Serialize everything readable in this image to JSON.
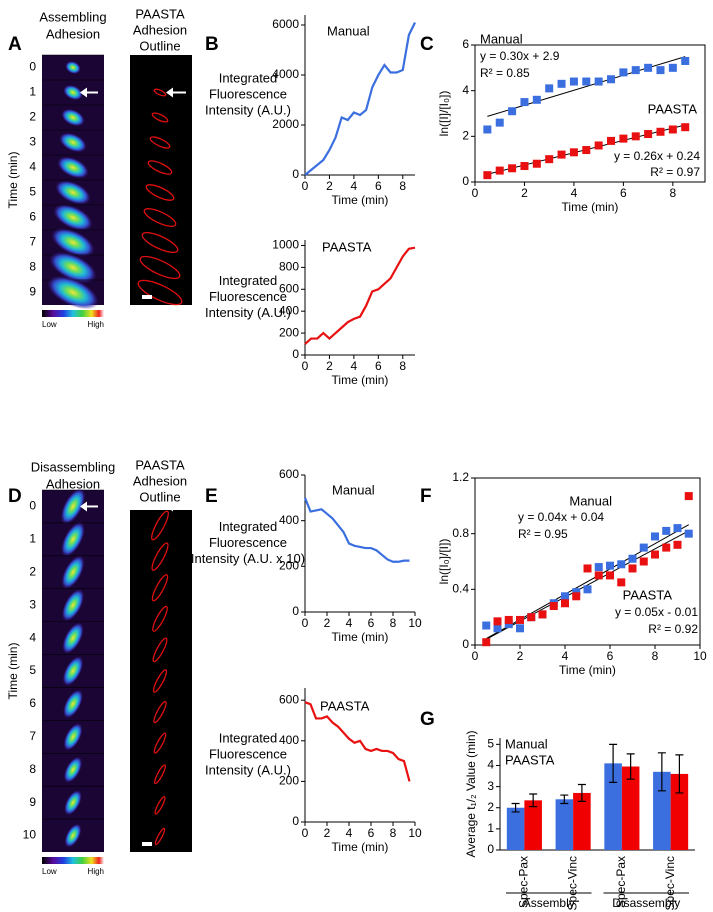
{
  "panel_letters": [
    "A",
    "B",
    "C",
    "D",
    "E",
    "F",
    "G"
  ],
  "panels": {
    "A": {
      "title": [
        "Assembling",
        "Adhesion"
      ],
      "outline_title": [
        "PAASTA",
        "Adhesion",
        "Outline"
      ],
      "ylabel": "Time (min)",
      "time_labels": [
        "0",
        "1",
        "2",
        "3",
        "4",
        "5",
        "6",
        "7",
        "8",
        "9"
      ],
      "colorbar": [
        "Low",
        "High"
      ]
    },
    "D": {
      "title": [
        "Disassembling",
        "Adhesion"
      ],
      "outline_title": [
        "PAASTA",
        "Adhesion",
        "Outline"
      ],
      "ylabel": "Time (min)",
      "time_labels": [
        "0",
        "1",
        "2",
        "3",
        "4",
        "5",
        "6",
        "7",
        "8",
        "9",
        "10"
      ],
      "colorbar": [
        "Low",
        "High"
      ]
    }
  },
  "chart_data": [
    {
      "type": "line",
      "ylabel": [
        "Integrated",
        "Fluorescence",
        "Intensity (A.U.)"
      ],
      "xlabel": "Time (min)",
      "x": [
        0,
        0.5,
        1,
        1.5,
        2,
        2.5,
        3,
        3.5,
        4,
        4.5,
        5,
        5.5,
        6,
        6.5,
        7,
        7.5,
        8,
        8.5,
        9
      ],
      "series": [
        {
          "name": "Manual",
          "color": "#3b6fe0",
          "values": [
            0,
            200,
            400,
            600,
            1000,
            1500,
            2300,
            2200,
            2500,
            2400,
            2600,
            3500,
            4000,
            4400,
            4100,
            4100,
            4200,
            5600,
            6100
          ]
        }
      ],
      "xlim": [
        0,
        9
      ],
      "xticks": [
        0,
        2,
        4,
        6,
        8
      ],
      "ylim": [
        0,
        6400
      ],
      "yticks": [
        0,
        2000,
        4000,
        6000
      ]
    },
    {
      "type": "line",
      "ylabel": [
        "Integrated",
        "Fluorescence",
        "Intensity (A.U.)"
      ],
      "xlabel": "Time (min)",
      "x": [
        0,
        0.5,
        1,
        1.5,
        2,
        2.5,
        3,
        3.5,
        4,
        4.5,
        5,
        5.5,
        6,
        6.5,
        7,
        7.5,
        8,
        8.5,
        9
      ],
      "series": [
        {
          "name": "PAASTA",
          "color": "#e81010",
          "values": [
            100,
            150,
            150,
            200,
            150,
            200,
            250,
            300,
            330,
            350,
            450,
            580,
            600,
            650,
            700,
            800,
            900,
            970,
            980
          ]
        }
      ],
      "xlim": [
        0,
        9
      ],
      "xticks": [
        0,
        2,
        4,
        6,
        8
      ],
      "ylim": [
        0,
        1050
      ],
      "yticks": [
        0,
        200,
        400,
        600,
        800,
        1000
      ]
    },
    {
      "type": "scatter",
      "ylabel": "ln([I]/[I₀])",
      "xlabel": "Time (min)",
      "x": [
        0.5,
        1,
        1.5,
        2,
        2.5,
        3,
        3.5,
        4,
        4.5,
        5,
        5.5,
        6,
        6.5,
        7,
        7.5,
        8,
        8.5
      ],
      "series": [
        {
          "name": "Manual",
          "color": "#3b6fe0",
          "fit_labels": [
            "y = 0.30x + 2.9",
            "R² = 0.85"
          ],
          "values": [
            2.3,
            2.6,
            3.1,
            3.5,
            3.6,
            4.1,
            4.3,
            4.4,
            4.4,
            4.4,
            4.5,
            4.8,
            4.9,
            5.0,
            4.9,
            5.0,
            5.3
          ]
        },
        {
          "name": "PAASTA",
          "color": "#e81010",
          "fit_labels": [
            "y = 0.26x + 0.24",
            "R² = 0.97"
          ],
          "values": [
            0.3,
            0.5,
            0.6,
            0.7,
            0.8,
            1.0,
            1.2,
            1.3,
            1.4,
            1.6,
            1.8,
            1.9,
            2.0,
            2.1,
            2.2,
            2.3,
            2.4
          ]
        }
      ],
      "xlim": [
        0,
        9.3
      ],
      "xticks": [
        0,
        2,
        4,
        6,
        8
      ],
      "ylim": [
        0,
        6
      ],
      "yticks": [
        0,
        2,
        4,
        6
      ]
    },
    {
      "type": "line",
      "ylabel": [
        "Integrated",
        "Fluorescence",
        "Intensity (A.U. x 10)"
      ],
      "xlabel": "Time (min)",
      "x": [
        0,
        0.5,
        1,
        1.5,
        2,
        2.5,
        3,
        3.5,
        4,
        4.5,
        5,
        5.5,
        6,
        6.5,
        7,
        7.5,
        8,
        8.5,
        9,
        9.5
      ],
      "series": [
        {
          "name": "Manual",
          "color": "#3b6fe0",
          "values": [
            500,
            440,
            445,
            450,
            430,
            410,
            380,
            350,
            300,
            290,
            285,
            280,
            280,
            270,
            250,
            230,
            220,
            220,
            225,
            225
          ]
        }
      ],
      "xlim": [
        0,
        10
      ],
      "xticks": [
        0,
        2,
        4,
        6,
        8,
        10
      ],
      "ylim": [
        0,
        600
      ],
      "yticks": [
        0,
        200,
        400,
        600
      ]
    },
    {
      "type": "line",
      "ylabel": [
        "Integrated",
        "Fluorescence",
        "Intensity (A.U.)"
      ],
      "xlabel": "Time (min)",
      "x": [
        0,
        0.5,
        1,
        1.5,
        2,
        2.5,
        3,
        3.5,
        4,
        4.5,
        5,
        5.5,
        6,
        6.5,
        7,
        7.5,
        8,
        8.5,
        9,
        9.5
      ],
      "series": [
        {
          "name": "PAASTA",
          "color": "#e81010",
          "values": [
            590,
            580,
            510,
            510,
            520,
            490,
            470,
            440,
            410,
            390,
            400,
            360,
            350,
            360,
            350,
            350,
            340,
            310,
            300,
            200
          ]
        }
      ],
      "xlim": [
        0,
        10
      ],
      "xticks": [
        0,
        2,
        4,
        6,
        8,
        10
      ],
      "ylim": [
        0,
        660
      ],
      "yticks": [
        0,
        200,
        400,
        600
      ]
    },
    {
      "type": "scatter",
      "ylabel": "ln([I₀]/[I])",
      "xlabel": "Time (min)",
      "x": [
        0.5,
        1,
        1.5,
        2,
        2.5,
        3,
        3.5,
        4,
        4.5,
        5,
        5.5,
        6,
        6.5,
        7,
        7.5,
        8,
        8.5,
        9,
        9.5
      ],
      "series": [
        {
          "name": "Manual",
          "color": "#3b6fe0",
          "fit_labels": [
            "y = 0.04x + 0.04",
            "R² = 0.95"
          ],
          "values": [
            0.14,
            0.12,
            0.15,
            0.12,
            0.2,
            0.22,
            0.3,
            0.35,
            0.38,
            0.4,
            0.56,
            0.57,
            0.58,
            0.62,
            0.7,
            0.78,
            0.82,
            0.84,
            0.8
          ]
        },
        {
          "name": "PAASTA",
          "color": "#e81010",
          "fit_labels": [
            "y = 0.05x - 0.01",
            "R² = 0.92"
          ],
          "values": [
            0.02,
            0.17,
            0.18,
            0.18,
            0.2,
            0.22,
            0.28,
            0.3,
            0.35,
            0.55,
            0.5,
            0.5,
            0.45,
            0.55,
            0.6,
            0.65,
            0.7,
            0.72,
            1.07
          ]
        }
      ],
      "xlim": [
        0,
        10
      ],
      "xticks": [
        0,
        2,
        4,
        6,
        8,
        10
      ],
      "ylim": [
        0,
        1.2
      ],
      "yticks": [
        0,
        0.4,
        0.8,
        1.2
      ]
    },
    {
      "type": "bar",
      "ylabel": "Average t₁/₂ Value (min)",
      "categories": [
        "Spec-Pax",
        "Spec-Vinc",
        "Spec-Pax",
        "Spec-Vinc"
      ],
      "groups": [
        "Assembly",
        "Disassembly"
      ],
      "series": [
        {
          "name": "Manual",
          "color": "#3b6fe0",
          "values": [
            2.0,
            2.4,
            4.1,
            3.7
          ],
          "errors": [
            0.2,
            0.2,
            0.9,
            0.9
          ]
        },
        {
          "name": "PAASTA",
          "color": "#f00000",
          "values": [
            2.35,
            2.7,
            3.95,
            3.6
          ],
          "errors": [
            0.3,
            0.4,
            0.6,
            0.9
          ]
        }
      ],
      "ylim": [
        0,
        5.3
      ],
      "yticks": [
        0,
        1,
        2,
        3,
        4,
        5
      ]
    }
  ]
}
